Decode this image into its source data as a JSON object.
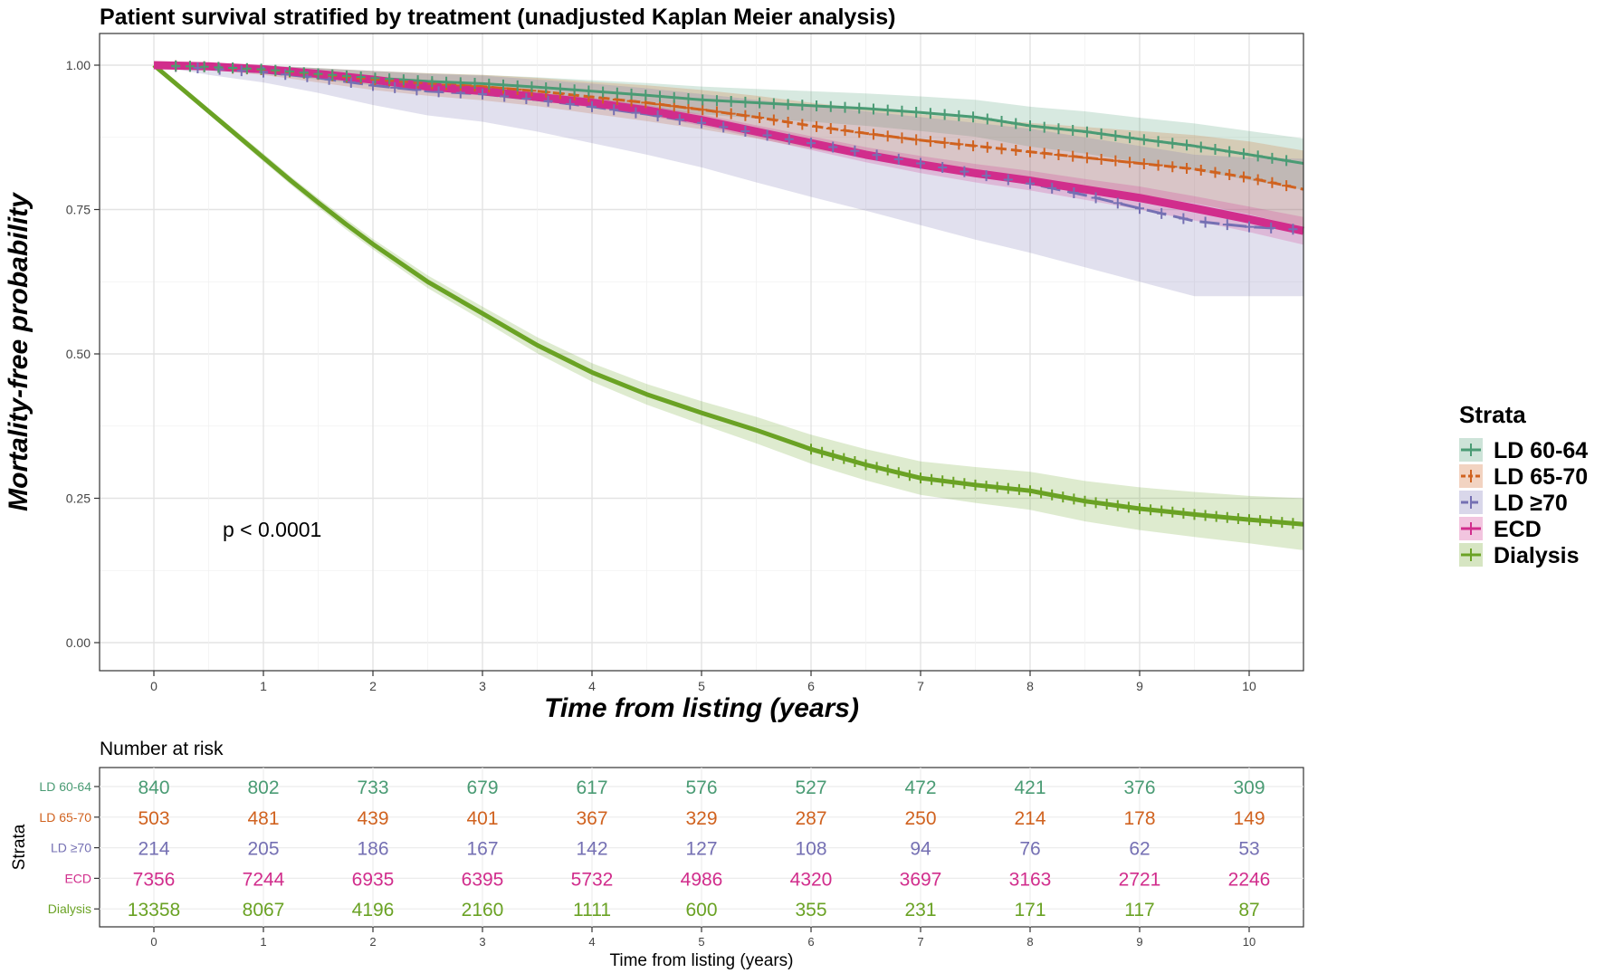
{
  "chart_data": [
    {
      "type": "line",
      "subtype": "kaplan-meier",
      "title": "Patient survival stratified by treatment (unadjusted Kaplan Meier analysis)",
      "xlabel": "Time from listing (years)",
      "ylabel": "Mortality-free probability",
      "xlim": [
        0,
        10.5
      ],
      "ylim": [
        0,
        1
      ],
      "x_ticks": [
        "0",
        "1",
        "2",
        "3",
        "4",
        "5",
        "6",
        "7",
        "8",
        "9",
        "10"
      ],
      "y_ticks": [
        "0.00",
        "0.25",
        "0.50",
        "0.75",
        "1.00"
      ],
      "grid": true,
      "legend_title": "Strata",
      "legend_position": "right",
      "annotation": "p < 0.0001",
      "series": [
        {
          "name": "LD 60-64",
          "color": "#4a9b74",
          "dash": "solid",
          "x": [
            0,
            0.5,
            1,
            1.5,
            2,
            2.5,
            3,
            3.5,
            4,
            4.5,
            5,
            5.5,
            6,
            6.5,
            7,
            7.5,
            8,
            8.5,
            9,
            9.5,
            10,
            10.5
          ],
          "y": [
            1.0,
            0.997,
            0.993,
            0.985,
            0.978,
            0.972,
            0.968,
            0.962,
            0.955,
            0.948,
            0.94,
            0.935,
            0.93,
            0.925,
            0.918,
            0.91,
            0.895,
            0.885,
            0.872,
            0.86,
            0.845,
            0.83
          ],
          "lower": [
            1.0,
            0.993,
            0.986,
            0.975,
            0.965,
            0.957,
            0.951,
            0.943,
            0.934,
            0.925,
            0.915,
            0.908,
            0.902,
            0.895,
            0.886,
            0.876,
            0.859,
            0.847,
            0.832,
            0.818,
            0.801,
            0.784
          ],
          "upper": [
            1.0,
            1.0,
            0.999,
            0.995,
            0.99,
            0.986,
            0.983,
            0.979,
            0.974,
            0.969,
            0.963,
            0.959,
            0.955,
            0.951,
            0.946,
            0.94,
            0.928,
            0.92,
            0.909,
            0.899,
            0.886,
            0.873
          ]
        },
        {
          "name": "LD 65-70",
          "color": "#d0621f",
          "dash": "dashed",
          "x": [
            0,
            0.5,
            1,
            1.5,
            2,
            2.5,
            3,
            3.5,
            4,
            4.5,
            5,
            5.5,
            6,
            6.5,
            7,
            7.5,
            8,
            8.5,
            9,
            9.5,
            10,
            10.5
          ],
          "y": [
            1.0,
            0.997,
            0.992,
            0.984,
            0.975,
            0.968,
            0.963,
            0.955,
            0.945,
            0.935,
            0.923,
            0.91,
            0.895,
            0.882,
            0.87,
            0.86,
            0.85,
            0.84,
            0.83,
            0.82,
            0.805,
            0.785
          ],
          "lower": [
            1.0,
            0.992,
            0.983,
            0.97,
            0.957,
            0.947,
            0.939,
            0.929,
            0.916,
            0.903,
            0.889,
            0.873,
            0.855,
            0.84,
            0.825,
            0.813,
            0.8,
            0.787,
            0.774,
            0.761,
            0.742,
            0.718
          ],
          "upper": [
            1.0,
            1.0,
            0.999,
            0.995,
            0.99,
            0.986,
            0.983,
            0.978,
            0.971,
            0.965,
            0.957,
            0.947,
            0.935,
            0.925,
            0.915,
            0.907,
            0.9,
            0.893,
            0.886,
            0.879,
            0.868,
            0.852
          ]
        },
        {
          "name": "LD ≥70",
          "color": "#7570b3",
          "dash": "longdash",
          "x": [
            0,
            0.5,
            1,
            1.5,
            2,
            2.5,
            3,
            3.5,
            4,
            4.5,
            5,
            5.5,
            6,
            6.5,
            7,
            7.5,
            8,
            8.5,
            9,
            9.5,
            10,
            10.5
          ],
          "y": [
            1.0,
            0.994,
            0.988,
            0.978,
            0.965,
            0.955,
            0.95,
            0.94,
            0.928,
            0.915,
            0.9,
            0.882,
            0.865,
            0.848,
            0.83,
            0.812,
            0.795,
            0.775,
            0.752,
            0.73,
            0.72,
            0.715
          ],
          "lower": [
            1.0,
            0.983,
            0.97,
            0.952,
            0.931,
            0.913,
            0.902,
            0.885,
            0.865,
            0.845,
            0.823,
            0.797,
            0.772,
            0.748,
            0.723,
            0.698,
            0.675,
            0.65,
            0.625,
            0.6,
            0.6,
            0.6
          ],
          "upper": [
            1.0,
            1.0,
            1.0,
            0.995,
            0.99,
            0.985,
            0.982,
            0.975,
            0.968,
            0.96,
            0.95,
            0.94,
            0.93,
            0.92,
            0.91,
            0.9,
            0.89,
            0.875,
            0.86,
            0.845,
            0.84,
            0.838
          ]
        },
        {
          "name": "ECD",
          "color": "#d12d8c",
          "dash": "solid",
          "x": [
            0,
            0.5,
            1,
            1.5,
            2,
            2.5,
            3,
            3.5,
            4,
            4.5,
            5,
            5.5,
            6,
            6.5,
            7,
            7.5,
            8,
            8.5,
            9,
            9.5,
            10,
            10.5
          ],
          "y": [
            1.0,
            0.998,
            0.993,
            0.985,
            0.975,
            0.963,
            0.955,
            0.945,
            0.935,
            0.922,
            0.905,
            0.885,
            0.865,
            0.845,
            0.828,
            0.813,
            0.8,
            0.785,
            0.77,
            0.752,
            0.733,
            0.713
          ],
          "lower": [
            1.0,
            0.997,
            0.991,
            0.982,
            0.971,
            0.958,
            0.949,
            0.938,
            0.927,
            0.913,
            0.895,
            0.874,
            0.853,
            0.832,
            0.813,
            0.797,
            0.783,
            0.767,
            0.75,
            0.731,
            0.711,
            0.689
          ],
          "upper": [
            1.0,
            0.999,
            0.995,
            0.988,
            0.979,
            0.968,
            0.961,
            0.952,
            0.943,
            0.931,
            0.915,
            0.896,
            0.877,
            0.858,
            0.843,
            0.829,
            0.817,
            0.803,
            0.79,
            0.773,
            0.755,
            0.737
          ]
        },
        {
          "name": "Dialysis",
          "color": "#6aa224",
          "dash": "solid",
          "x": [
            0,
            0.25,
            0.5,
            0.75,
            1,
            1.25,
            1.5,
            1.75,
            2,
            2.5,
            3,
            3.5,
            4,
            4.5,
            5,
            5.5,
            6,
            6.5,
            7,
            7.5,
            8,
            8.5,
            9,
            9.5,
            10,
            10.5
          ],
          "y": [
            1.0,
            0.96,
            0.92,
            0.88,
            0.84,
            0.8,
            0.762,
            0.725,
            0.69,
            0.625,
            0.57,
            0.515,
            0.468,
            0.43,
            0.398,
            0.368,
            0.335,
            0.308,
            0.285,
            0.273,
            0.263,
            0.245,
            0.232,
            0.222,
            0.213,
            0.205
          ],
          "lower": [
            1.0,
            0.956,
            0.915,
            0.874,
            0.833,
            0.793,
            0.754,
            0.716,
            0.681,
            0.614,
            0.558,
            0.501,
            0.452,
            0.412,
            0.378,
            0.345,
            0.31,
            0.281,
            0.256,
            0.242,
            0.23,
            0.21,
            0.195,
            0.183,
            0.172,
            0.16
          ],
          "upper": [
            1.0,
            0.964,
            0.925,
            0.886,
            0.847,
            0.807,
            0.77,
            0.734,
            0.699,
            0.636,
            0.582,
            0.529,
            0.484,
            0.448,
            0.418,
            0.391,
            0.36,
            0.335,
            0.314,
            0.304,
            0.296,
            0.28,
            0.269,
            0.261,
            0.254,
            0.25
          ]
        }
      ]
    },
    {
      "type": "table",
      "title": "Number at risk",
      "xlabel": "Time from listing (years)",
      "ylabel": "Strata",
      "x_ticks": [
        "0",
        "1",
        "2",
        "3",
        "4",
        "5",
        "6",
        "7",
        "8",
        "9",
        "10"
      ],
      "rows": [
        {
          "name": "LD 60-64",
          "color": "#4a9b74",
          "values": [
            "840",
            "802",
            "733",
            "679",
            "617",
            "576",
            "527",
            "472",
            "421",
            "376",
            "309"
          ]
        },
        {
          "name": "LD 65-70",
          "color": "#d0621f",
          "values": [
            "503",
            "481",
            "439",
            "401",
            "367",
            "329",
            "287",
            "250",
            "214",
            "178",
            "149"
          ]
        },
        {
          "name": "LD ≥70",
          "color": "#7570b3",
          "values": [
            "214",
            "205",
            "186",
            "167",
            "142",
            "127",
            "108",
            "94",
            "76",
            "62",
            "53"
          ]
        },
        {
          "name": "ECD",
          "color": "#d12d8c",
          "values": [
            "7356",
            "7244",
            "6935",
            "6395",
            "5732",
            "4986",
            "4320",
            "3697",
            "3163",
            "2721",
            "2246"
          ]
        },
        {
          "name": "Dialysis",
          "color": "#6aa224",
          "values": [
            "13358",
            "8067",
            "4196",
            "2160",
            "1111",
            "600",
            "355",
            "231",
            "171",
            "117",
            "87"
          ]
        }
      ]
    }
  ]
}
